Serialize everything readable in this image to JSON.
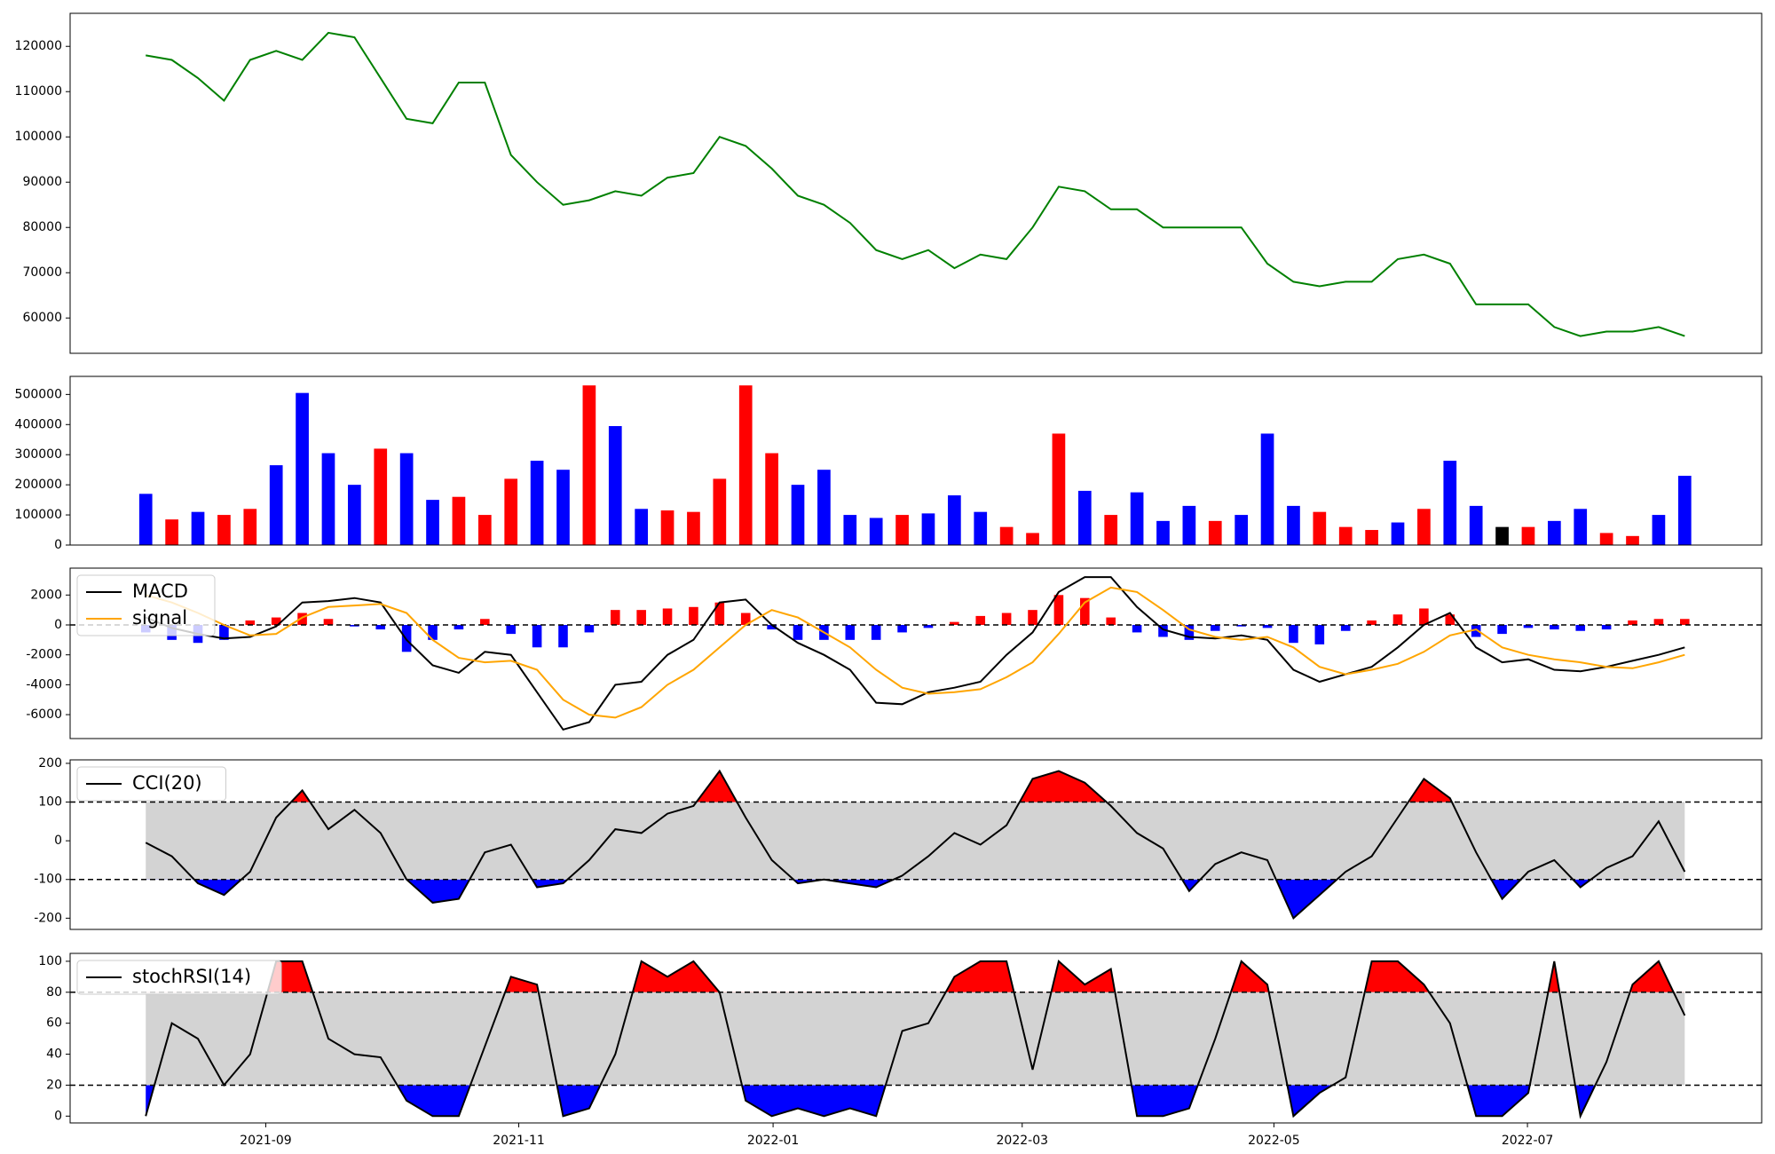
{
  "chart_data": [
    {
      "type": "line",
      "xlim": [
        -2.9,
        61.95
      ],
      "ylim": [
        52200,
        127300
      ],
      "yticks": [
        60000,
        70000,
        80000,
        90000,
        100000,
        110000,
        120000
      ],
      "color": "#008000",
      "values": [
        118000,
        117000,
        113000,
        108000,
        117000,
        119000,
        117000,
        123000,
        122000,
        113000,
        104000,
        103000,
        112000,
        112000,
        96000,
        90000,
        85000,
        86000,
        88000,
        87000,
        91000,
        92000,
        100000,
        98000,
        93000,
        87000,
        85000,
        81000,
        75000,
        73000,
        75000,
        71000,
        74000,
        73000,
        80000,
        89000,
        88000,
        84000,
        84000,
        80000,
        80000,
        80000,
        80000,
        72000,
        68000,
        67000,
        68000,
        68000,
        73000,
        74000,
        72000,
        63000,
        63000,
        63000,
        58000,
        56000,
        57000,
        57000,
        58000,
        56000
      ]
    },
    {
      "type": "bar",
      "xlim": [
        -2.9,
        61.95
      ],
      "ylim": [
        0,
        560000
      ],
      "yticks": [
        0,
        100000,
        200000,
        300000,
        400000,
        500000
      ],
      "values": [
        170000,
        85000,
        110000,
        100000,
        120000,
        265000,
        505000,
        305000,
        200000,
        320000,
        305000,
        150000,
        160000,
        100000,
        220000,
        280000,
        250000,
        530000,
        395000,
        120000,
        115000,
        110000,
        220000,
        530000,
        305000,
        200000,
        250000,
        100000,
        90000,
        100000,
        105000,
        165000,
        110000,
        60000,
        40000,
        370000,
        180000,
        100000,
        175000,
        80000,
        130000,
        80000,
        100000,
        370000,
        130000,
        110000,
        60000,
        50000,
        75000,
        120000,
        280000,
        130000,
        60000,
        60000,
        80000,
        120000,
        40000,
        30000,
        100000,
        230000
      ],
      "colors": [
        "#0000ff",
        "#ff0000",
        "#0000ff",
        "#ff0000",
        "#ff0000",
        "#0000ff",
        "#0000ff",
        "#0000ff",
        "#0000ff",
        "#ff0000",
        "#0000ff",
        "#0000ff",
        "#ff0000",
        "#ff0000",
        "#ff0000",
        "#0000ff",
        "#0000ff",
        "#ff0000",
        "#0000ff",
        "#0000ff",
        "#ff0000",
        "#ff0000",
        "#ff0000",
        "#ff0000",
        "#ff0000",
        "#0000ff",
        "#0000ff",
        "#0000ff",
        "#0000ff",
        "#ff0000",
        "#0000ff",
        "#0000ff",
        "#0000ff",
        "#ff0000",
        "#ff0000",
        "#ff0000",
        "#0000ff",
        "#ff0000",
        "#0000ff",
        "#0000ff",
        "#0000ff",
        "#ff0000",
        "#0000ff",
        "#0000ff",
        "#0000ff",
        "#ff0000",
        "#ff0000",
        "#ff0000",
        "#0000ff",
        "#ff0000",
        "#0000ff",
        "#0000ff",
        "#000000",
        "#ff0000",
        "#0000ff",
        "#0000ff",
        "#ff0000",
        "#ff0000",
        "#0000ff",
        "#0000ff"
      ]
    },
    {
      "type": "macd",
      "xlim": [
        -2.9,
        61.95
      ],
      "ylim": [
        -7600,
        3800
      ],
      "yticks": [
        -6000,
        -4000,
        -2000,
        0,
        2000
      ],
      "hlines": [
        0
      ],
      "legend": "upper left",
      "series": [
        {
          "name": "MACD",
          "color": "#000000",
          "values": [
            500,
            -200,
            -600,
            -900,
            -800,
            -100,
            1500,
            1600,
            1800,
            1500,
            -1000,
            -2700,
            -3200,
            -1800,
            -2000,
            -4500,
            -7000,
            -6500,
            -4000,
            -3800,
            -2000,
            -1000,
            1500,
            1700,
            0,
            -1200,
            -2000,
            -3000,
            -5200,
            -5300,
            -4500,
            -4200,
            -3800,
            -2000,
            -500,
            2200,
            3200,
            3200,
            1200,
            -300,
            -800,
            -900,
            -700,
            -1000,
            -3000,
            -3800,
            -3300,
            -2800,
            -1500,
            0,
            800,
            -1500,
            -2500,
            -2300,
            -3000,
            -3100,
            -2800,
            -2400,
            -2000,
            -1500
          ]
        },
        {
          "name": "signal",
          "color": "#ffa500",
          "values": [
            2000,
            1500,
            800,
            0,
            -700,
            -600,
            500,
            1200,
            1300,
            1400,
            800,
            -1000,
            -2200,
            -2500,
            -2400,
            -3000,
            -5000,
            -6000,
            -6200,
            -5500,
            -4000,
            -3000,
            -1500,
            0,
            1000,
            500,
            -500,
            -1500,
            -3000,
            -4200,
            -4600,
            -4500,
            -4300,
            -3500,
            -2500,
            -600,
            1500,
            2500,
            2200,
            1000,
            -300,
            -800,
            -1000,
            -800,
            -1500,
            -2800,
            -3300,
            -3000,
            -2600,
            -1800,
            -700,
            -300,
            -1500,
            -2000,
            -2300,
            -2500,
            -2800,
            -2900,
            -2500,
            -2000
          ]
        }
      ],
      "histogram": {
        "positive_color": "#ff0000",
        "negative_color": "#0000ff",
        "values": [
          -500,
          -1000,
          -1200,
          -1000,
          300,
          500,
          800,
          400,
          -100,
          -300,
          -1800,
          -1000,
          -300,
          400,
          -600,
          -1500,
          -1500,
          -500,
          1000,
          1000,
          1100,
          1200,
          1500,
          800,
          -300,
          -1000,
          -1000,
          -1000,
          -1000,
          -500,
          -200,
          200,
          600,
          800,
          1000,
          2000,
          1800,
          500,
          -500,
          -800,
          -1000,
          -400,
          -100,
          -200,
          -1200,
          -1300,
          -400,
          300,
          700,
          1100,
          700,
          -800,
          -600,
          -200,
          -300,
          -400,
          -300,
          300,
          400,
          400
        ]
      }
    },
    {
      "type": "oscillator",
      "xlim": [
        -2.9,
        61.95
      ],
      "ylim": [
        -229,
        209
      ],
      "yticks": [
        -200,
        -100,
        0,
        100,
        200
      ],
      "hlines": [
        100,
        -100
      ],
      "legend": "upper left",
      "band_color": "#d3d3d3",
      "upper_color": "#ff0000",
      "lower_color": "#0000ff",
      "series": [
        {
          "name": "CCI(20)",
          "color": "#000000",
          "values": [
            -5,
            -40,
            -110,
            -140,
            -80,
            60,
            130,
            30,
            80,
            20,
            -100,
            -160,
            -150,
            -30,
            -10,
            -120,
            -110,
            -50,
            30,
            20,
            70,
            90,
            180,
            60,
            -50,
            -110,
            -100,
            -110,
            -120,
            -90,
            -40,
            20,
            -10,
            40,
            160,
            180,
            150,
            90,
            20,
            -20,
            -130,
            -60,
            -30,
            -50,
            -200,
            -140,
            -80,
            -40,
            60,
            160,
            110,
            -30,
            -150,
            -80,
            -50,
            -120,
            -70,
            -40,
            50,
            -80
          ]
        }
      ]
    },
    {
      "type": "oscillator",
      "xlim": [
        -2.9,
        61.95
      ],
      "ylim": [
        -4.4,
        105.1
      ],
      "yticks": [
        0,
        20,
        40,
        60,
        80,
        100
      ],
      "hlines": [
        80,
        20
      ],
      "legend": "upper left",
      "band_color": "#d3d3d3",
      "upper_color": "#ff0000",
      "lower_color": "#0000ff",
      "xticks": [
        {
          "value": 4.6,
          "label": "2021-09"
        },
        {
          "value": 14.3,
          "label": "2021-11"
        },
        {
          "value": 24.05,
          "label": "2022-01"
        },
        {
          "value": 33.6,
          "label": "2022-03"
        },
        {
          "value": 43.25,
          "label": "2022-05"
        },
        {
          "value": 52.97,
          "label": "2022-07"
        }
      ],
      "series": [
        {
          "name": "stochRSI(14)",
          "color": "#000000",
          "values": [
            0,
            60,
            50,
            20,
            40,
            100,
            100,
            50,
            40,
            38,
            10,
            0,
            0,
            45,
            90,
            85,
            0,
            5,
            40,
            100,
            90,
            100,
            80,
            10,
            0,
            5,
            0,
            5,
            0,
            55,
            60,
            90,
            100,
            100,
            30,
            100,
            85,
            95,
            0,
            0,
            5,
            50,
            100,
            85,
            0,
            15,
            25,
            100,
            100,
            85,
            60,
            0,
            0,
            15,
            100,
            0,
            35,
            85,
            100,
            65
          ]
        }
      ]
    }
  ]
}
